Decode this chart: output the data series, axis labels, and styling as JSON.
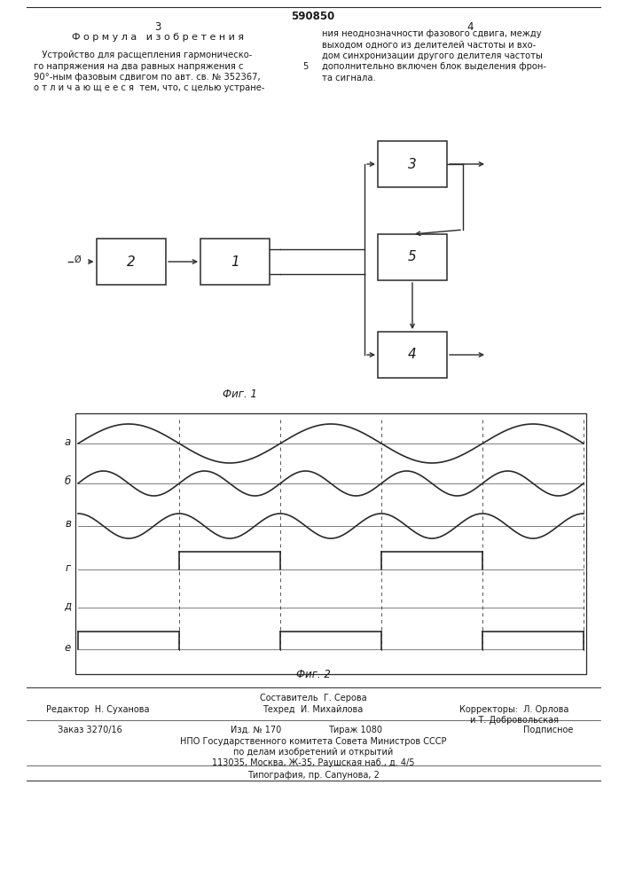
{
  "patent_number": "590850",
  "page_left": "3",
  "page_right": "4",
  "section_title": "Ф о р м у л а   и з о б р е т е н и я",
  "left_text_lines": [
    "   Устройство для расщепления гармоническо-",
    "го напряжения на два равных напряжения с",
    "90°-ным фазовым сдвигом по авт. св. № 352367,",
    "о т л и ч а ю щ е е с я  тем, что, с целью устране-"
  ],
  "right_text_lines": [
    "ния неоднозначности фазового сдвига, между",
    "выходом одного из делителей частоты и вхо-",
    "дом синхронизации другого делителя частоты",
    "дополнительно включен блок выделения фрон-",
    "та сигнала."
  ],
  "right_text_number": "5",
  "fig1_label": "Фиг. 1",
  "fig2_label": "Фиг. 2",
  "waveform_labels": [
    "а",
    "б",
    "в",
    "г",
    "д",
    "е"
  ],
  "bg_color": "#ffffff",
  "text_color": "#1a1a1a",
  "line_color": "#2a2a2a"
}
